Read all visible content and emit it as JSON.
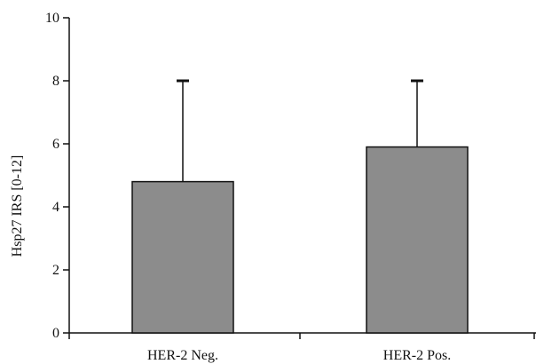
{
  "chart_data": {
    "type": "bar",
    "title": "",
    "xlabel": "",
    "ylabel": "Hsp27 IRS [0-12]",
    "categories": [
      "HER-2 Neg.",
      "HER-2 Pos."
    ],
    "values": [
      4.8,
      5.9
    ],
    "error_upper": [
      8,
      8
    ],
    "ylim": [
      0,
      10
    ],
    "yticks": [
      0,
      2,
      4,
      6,
      8,
      10
    ],
    "bar_color": "#8c8c8c",
    "grid": false,
    "legend": "none"
  }
}
